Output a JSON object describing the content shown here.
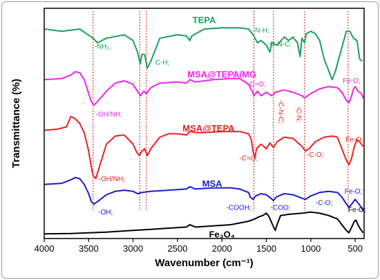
{
  "chart_data": {
    "type": "line",
    "xlabel": "Wavenumber (cm⁻¹)",
    "ylabel": "Transmittance (%)",
    "xlim": [
      4000,
      400
    ],
    "x_reversed": true,
    "ylim": [
      0,
      10
    ],
    "x_ticks": [
      4000,
      3500,
      3000,
      2500,
      2000,
      1500,
      1000,
      500
    ],
    "y_ticks_shown": false,
    "reference_lines": [
      3450,
      2925,
      2850,
      1640,
      1420,
      1070,
      580
    ],
    "series": [
      {
        "name": "TEPA",
        "color": "#1aa05a",
        "points": [
          [
            4000,
            9.1
          ],
          [
            3800,
            9.0
          ],
          [
            3600,
            9.1
          ],
          [
            3450,
            8.7
          ],
          [
            3400,
            8.5
          ],
          [
            3300,
            8.7
          ],
          [
            3100,
            8.85
          ],
          [
            3000,
            8.6
          ],
          [
            2950,
            8.1
          ],
          [
            2920,
            7.6
          ],
          [
            2900,
            8.0
          ],
          [
            2870,
            8.0
          ],
          [
            2840,
            7.4
          ],
          [
            2800,
            7.7
          ],
          [
            2700,
            8.7
          ],
          [
            2500,
            8.85
          ],
          [
            2400,
            8.8
          ],
          [
            2360,
            8.6
          ],
          [
            2340,
            8.8
          ],
          [
            2200,
            9.1
          ],
          [
            2000,
            9.15
          ],
          [
            1800,
            9.15
          ],
          [
            1700,
            9.1
          ],
          [
            1650,
            8.85
          ],
          [
            1600,
            8.5
          ],
          [
            1560,
            8.6
          ],
          [
            1500,
            8.4
          ],
          [
            1460,
            8.1
          ],
          [
            1440,
            8.5
          ],
          [
            1380,
            8.4
          ],
          [
            1300,
            8.75
          ],
          [
            1250,
            8.6
          ],
          [
            1200,
            8.75
          ],
          [
            1150,
            8.5
          ],
          [
            1120,
            7.9
          ],
          [
            1100,
            8.7
          ],
          [
            1070,
            8.5
          ],
          [
            1050,
            8.9
          ],
          [
            1000,
            9.0
          ],
          [
            950,
            8.9
          ],
          [
            900,
            8.6
          ],
          [
            850,
            7.8
          ],
          [
            800,
            7.3
          ],
          [
            760,
            6.9
          ],
          [
            720,
            7.3
          ],
          [
            650,
            8.3
          ],
          [
            600,
            9.0
          ],
          [
            560,
            9.0
          ],
          [
            520,
            8.7
          ],
          [
            480,
            8.6
          ],
          [
            450,
            7.8
          ],
          [
            420,
            7.7
          ]
        ]
      },
      {
        "name": "MSA@TEPA/MG",
        "color": "#ee22ee",
        "points": [
          [
            4000,
            6.9
          ],
          [
            3800,
            6.95
          ],
          [
            3700,
            7.1
          ],
          [
            3650,
            7.25
          ],
          [
            3600,
            7.2
          ],
          [
            3550,
            6.9
          ],
          [
            3500,
            6.3
          ],
          [
            3470,
            5.95
          ],
          [
            3440,
            5.8
          ],
          [
            3400,
            5.95
          ],
          [
            3300,
            6.4
          ],
          [
            3200,
            6.75
          ],
          [
            3100,
            6.85
          ],
          [
            3000,
            6.7
          ],
          [
            2950,
            6.4
          ],
          [
            2920,
            6.2
          ],
          [
            2880,
            6.4
          ],
          [
            2850,
            6.3
          ],
          [
            2800,
            6.55
          ],
          [
            2700,
            6.75
          ],
          [
            2500,
            6.8
          ],
          [
            2400,
            6.75
          ],
          [
            2360,
            6.9
          ],
          [
            2300,
            6.8
          ],
          [
            2100,
            6.9
          ],
          [
            1900,
            6.95
          ],
          [
            1800,
            6.95
          ],
          [
            1700,
            6.7
          ],
          [
            1660,
            6.4
          ],
          [
            1640,
            6.2
          ],
          [
            1600,
            6.4
          ],
          [
            1560,
            6.2
          ],
          [
            1500,
            6.35
          ],
          [
            1440,
            6.2
          ],
          [
            1400,
            6.35
          ],
          [
            1300,
            6.45
          ],
          [
            1200,
            6.35
          ],
          [
            1100,
            6.2
          ],
          [
            1070,
            6.1
          ],
          [
            1000,
            6.3
          ],
          [
            900,
            6.5
          ],
          [
            800,
            6.6
          ],
          [
            700,
            6.55
          ],
          [
            650,
            6.35
          ],
          [
            600,
            6.0
          ],
          [
            570,
            5.9
          ],
          [
            540,
            6.2
          ],
          [
            520,
            6.5
          ],
          [
            500,
            6.6
          ],
          [
            470,
            6.4
          ],
          [
            430,
            6.3
          ],
          [
            410,
            6.1
          ]
        ]
      },
      {
        "name": "MSA@TEPA",
        "color": "#e82020",
        "points": [
          [
            4000,
            4.7
          ],
          [
            3850,
            4.75
          ],
          [
            3750,
            4.85
          ],
          [
            3700,
            5.3
          ],
          [
            3650,
            5.2
          ],
          [
            3600,
            5.0
          ],
          [
            3550,
            4.6
          ],
          [
            3500,
            3.8
          ],
          [
            3470,
            3.1
          ],
          [
            3450,
            2.75
          ],
          [
            3420,
            2.6
          ],
          [
            3400,
            2.85
          ],
          [
            3300,
            4.1
          ],
          [
            3200,
            4.45
          ],
          [
            3100,
            4.5
          ],
          [
            3000,
            4.1
          ],
          [
            2960,
            3.75
          ],
          [
            2930,
            3.6
          ],
          [
            2900,
            3.8
          ],
          [
            2870,
            3.9
          ],
          [
            2840,
            3.6
          ],
          [
            2800,
            3.9
          ],
          [
            2700,
            4.4
          ],
          [
            2600,
            4.55
          ],
          [
            2500,
            4.55
          ],
          [
            2400,
            4.5
          ],
          [
            2360,
            4.65
          ],
          [
            2300,
            4.6
          ],
          [
            2200,
            4.6
          ],
          [
            2000,
            4.65
          ],
          [
            1800,
            4.65
          ],
          [
            1700,
            4.55
          ],
          [
            1670,
            4.3
          ],
          [
            1650,
            3.8
          ],
          [
            1630,
            3.5
          ],
          [
            1610,
            3.9
          ],
          [
            1560,
            4.1
          ],
          [
            1500,
            3.9
          ],
          [
            1460,
            4.15
          ],
          [
            1420,
            3.95
          ],
          [
            1380,
            4.2
          ],
          [
            1300,
            4.4
          ],
          [
            1200,
            4.35
          ],
          [
            1100,
            4.0
          ],
          [
            1060,
            3.8
          ],
          [
            1020,
            3.9
          ],
          [
            950,
            4.2
          ],
          [
            850,
            4.4
          ],
          [
            750,
            4.45
          ],
          [
            700,
            4.4
          ],
          [
            650,
            3.9
          ],
          [
            600,
            3.4
          ],
          [
            570,
            3.2
          ],
          [
            540,
            3.5
          ],
          [
            510,
            4.0
          ],
          [
            480,
            4.3
          ],
          [
            450,
            4.2
          ],
          [
            410,
            4.0
          ]
        ]
      },
      {
        "name": "MSA",
        "color": "#1a1ad0",
        "points": [
          [
            4000,
            2.35
          ],
          [
            3800,
            2.4
          ],
          [
            3700,
            2.55
          ],
          [
            3650,
            2.65
          ],
          [
            3600,
            2.6
          ],
          [
            3550,
            2.35
          ],
          [
            3500,
            1.95
          ],
          [
            3470,
            1.6
          ],
          [
            3440,
            1.5
          ],
          [
            3400,
            1.6
          ],
          [
            3300,
            1.9
          ],
          [
            3200,
            2.05
          ],
          [
            3100,
            2.1
          ],
          [
            3000,
            2.05
          ],
          [
            2950,
            1.95
          ],
          [
            2900,
            2.0
          ],
          [
            2800,
            2.05
          ],
          [
            2600,
            2.1
          ],
          [
            2400,
            2.15
          ],
          [
            2360,
            2.25
          ],
          [
            2300,
            2.15
          ],
          [
            2100,
            2.2
          ],
          [
            1900,
            2.2
          ],
          [
            1800,
            2.15
          ],
          [
            1700,
            2.0
          ],
          [
            1680,
            1.8
          ],
          [
            1650,
            1.7
          ],
          [
            1620,
            1.85
          ],
          [
            1560,
            1.95
          ],
          [
            1500,
            1.9
          ],
          [
            1450,
            1.75
          ],
          [
            1420,
            1.65
          ],
          [
            1390,
            1.8
          ],
          [
            1300,
            1.95
          ],
          [
            1200,
            1.9
          ],
          [
            1100,
            1.75
          ],
          [
            1060,
            1.7
          ],
          [
            1000,
            1.85
          ],
          [
            900,
            2.0
          ],
          [
            800,
            2.05
          ],
          [
            700,
            2.0
          ],
          [
            650,
            1.8
          ],
          [
            600,
            1.5
          ],
          [
            570,
            1.35
          ],
          [
            540,
            1.5
          ],
          [
            500,
            1.7
          ],
          [
            470,
            1.55
          ],
          [
            440,
            1.4
          ],
          [
            410,
            1.2
          ]
        ]
      },
      {
        "name": "Fe₃O₄",
        "color": "#000000",
        "points": [
          [
            4000,
            0.2
          ],
          [
            3700,
            0.22
          ],
          [
            3500,
            0.25
          ],
          [
            3300,
            0.28
          ],
          [
            3000,
            0.35
          ],
          [
            2800,
            0.4
          ],
          [
            2600,
            0.45
          ],
          [
            2400,
            0.5
          ],
          [
            2360,
            0.6
          ],
          [
            2300,
            0.5
          ],
          [
            2100,
            0.55
          ],
          [
            1900,
            0.6
          ],
          [
            1700,
            0.75
          ],
          [
            1630,
            0.85
          ],
          [
            1580,
            0.95
          ],
          [
            1540,
            1.0
          ],
          [
            1500,
            1.1
          ],
          [
            1470,
            0.95
          ],
          [
            1430,
            0.6
          ],
          [
            1400,
            0.35
          ],
          [
            1380,
            0.6
          ],
          [
            1340,
            1.0
          ],
          [
            1250,
            1.05
          ],
          [
            1100,
            1.1
          ],
          [
            1000,
            1.15
          ],
          [
            900,
            1.1
          ],
          [
            800,
            1.0
          ],
          [
            700,
            0.85
          ],
          [
            650,
            0.6
          ],
          [
            600,
            0.35
          ],
          [
            570,
            0.25
          ],
          [
            540,
            0.5
          ],
          [
            510,
            0.75
          ],
          [
            490,
            0.8
          ],
          [
            470,
            0.6
          ],
          [
            440,
            0.4
          ],
          [
            410,
            0.25
          ]
        ]
      }
    ],
    "series_labels": [
      {
        "text": "TEPA",
        "color": "#1aa05a",
        "x": 2200,
        "y": 9.35
      },
      {
        "text": "MSA@TEPA/MG",
        "color": "#ee22ee",
        "x": 2000,
        "y": 7.0
      },
      {
        "text": "MSA@TEPA",
        "color": "#e82020",
        "x": 2150,
        "y": 4.65
      },
      {
        "text": "MSA",
        "color": "#1a1ad0",
        "x": 2110,
        "y": 2.25
      },
      {
        "text": "Fe₃O₄",
        "color": "#000000",
        "x": 2000,
        "y": 0.05
      }
    ],
    "annotations": [
      {
        "text": "-NH₂;",
        "color": "#1aa05a",
        "x": 3340,
        "y": 8.25
      },
      {
        "text": "C-H;",
        "color": "#1aa05a",
        "x": 2670,
        "y": 7.55
      },
      {
        "text": "-N-H;",
        "color": "#1aa05a",
        "x": 1560,
        "y": 8.95
      },
      {
        "text": "-C-N-C;",
        "color": "#1aa05a",
        "x": 1350,
        "y": 8.35
      },
      {
        "text": "Fe-O;",
        "color": "#ee22ee",
        "x": 540,
        "y": 6.75
      },
      {
        "text": "-C=O;",
        "color": "#ee22ee",
        "x": 1610,
        "y": 6.6
      },
      {
        "text": "-C-N-C;",
        "color": "#e82020",
        "x": 1360,
        "y": 5.5,
        "rotate": 90
      },
      {
        "text": "-C-N;",
        "color": "#e82020",
        "x": 1160,
        "y": 5.4,
        "rotate": 90
      },
      {
        "text": "-OH/NH;",
        "color": "#ee22ee",
        "x": 3270,
        "y": 5.3
      },
      {
        "text": "-C=O;",
        "color": "#e82020",
        "x": 1700,
        "y": 3.4
      },
      {
        "text": "-C-O;",
        "color": "#e82020",
        "x": 950,
        "y": 3.55
      },
      {
        "text": "Fe-O;",
        "color": "#e82020",
        "x": 510,
        "y": 4.2
      },
      {
        "text": "-OH/NH;",
        "color": "#e82020",
        "x": 3240,
        "y": 2.5
      },
      {
        "text": "-COOH;",
        "color": "#1a1ad0",
        "x": 1810,
        "y": 1.25
      },
      {
        "text": "-COO;",
        "color": "#1a1ad0",
        "x": 1340,
        "y": 1.25
      },
      {
        "text": "-C-O;",
        "color": "#1a1ad0",
        "x": 850,
        "y": 1.45
      },
      {
        "text": "Fe-O;",
        "color": "#1a1ad0",
        "x": 520,
        "y": 1.95
      },
      {
        "text": "-OH;",
        "color": "#1a1ad0",
        "x": 3310,
        "y": 1.05
      },
      {
        "text": "Fe-O;",
        "color": "#000000",
        "x": 480,
        "y": 1.15
      }
    ]
  }
}
